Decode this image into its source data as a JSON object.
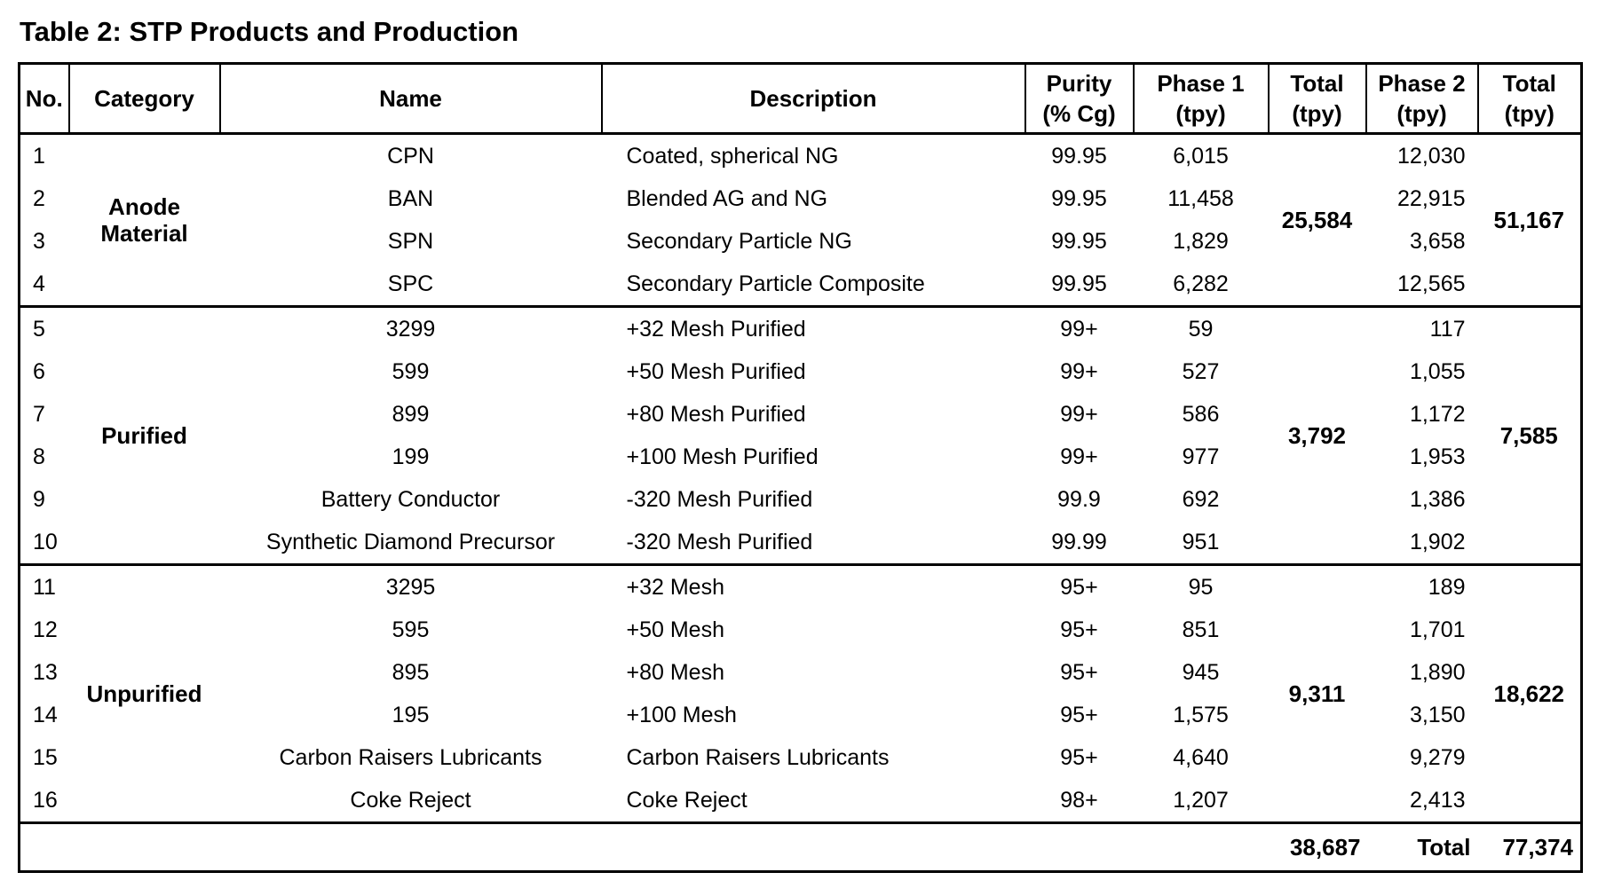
{
  "title": "Table 2: STP Products and Production",
  "columns": [
    {
      "label": "No.",
      "sub": ""
    },
    {
      "label": "Category",
      "sub": ""
    },
    {
      "label": "Name",
      "sub": ""
    },
    {
      "label": "Description",
      "sub": ""
    },
    {
      "label": "Purity",
      "sub": "(% Cg)"
    },
    {
      "label": "Phase 1",
      "sub": "(tpy)"
    },
    {
      "label": "Total",
      "sub": "(tpy)"
    },
    {
      "label": "Phase 2",
      "sub": "(tpy)"
    },
    {
      "label": "Total",
      "sub": "(tpy)"
    }
  ],
  "groups": [
    {
      "category": "Anode Material",
      "phase1_total": "25,584",
      "phase2_total": "51,167",
      "rows": [
        {
          "no": "1",
          "name": "CPN",
          "description": "Coated, spherical NG",
          "purity": "99.95",
          "phase1": "6,015",
          "phase2": "12,030"
        },
        {
          "no": "2",
          "name": "BAN",
          "description": "Blended AG and NG",
          "purity": "99.95",
          "phase1": "11,458",
          "phase2": "22,915"
        },
        {
          "no": "3",
          "name": "SPN",
          "description": "Secondary Particle NG",
          "purity": "99.95",
          "phase1": "1,829",
          "phase2": "3,658"
        },
        {
          "no": "4",
          "name": "SPC",
          "description": "Secondary Particle Composite",
          "purity": "99.95",
          "phase1": "6,282",
          "phase2": "12,565"
        }
      ]
    },
    {
      "category": "Purified",
      "phase1_total": "3,792",
      "phase2_total": "7,585",
      "rows": [
        {
          "no": "5",
          "name": "3299",
          "description": "+32 Mesh Purified",
          "purity": "99+",
          "phase1": "59",
          "phase2": "117"
        },
        {
          "no": "6",
          "name": "599",
          "description": "+50 Mesh Purified",
          "purity": "99+",
          "phase1": "527",
          "phase2": "1,055"
        },
        {
          "no": "7",
          "name": "899",
          "description": "+80 Mesh Purified",
          "purity": "99+",
          "phase1": "586",
          "phase2": "1,172"
        },
        {
          "no": "8",
          "name": "199",
          "description": "+100 Mesh Purified",
          "purity": "99+",
          "phase1": "977",
          "phase2": "1,953"
        },
        {
          "no": "9",
          "name": "Battery Conductor",
          "description": "-320 Mesh Purified",
          "purity": "99.9",
          "phase1": "692",
          "phase2": "1,386"
        },
        {
          "no": "10",
          "name": "Synthetic Diamond Precursor",
          "description": "-320 Mesh Purified",
          "purity": "99.99",
          "phase1": "951",
          "phase2": "1,902"
        }
      ]
    },
    {
      "category": "Unpurified",
      "phase1_total": "9,311",
      "phase2_total": "18,622",
      "rows": [
        {
          "no": "11",
          "name": "3295",
          "description": "+32 Mesh",
          "purity": "95+",
          "phase1": "95",
          "phase2": "189"
        },
        {
          "no": "12",
          "name": "595",
          "description": "+50 Mesh",
          "purity": "95+",
          "phase1": "851",
          "phase2": "1,701"
        },
        {
          "no": "13",
          "name": "895",
          "description": "+80 Mesh",
          "purity": "95+",
          "phase1": "945",
          "phase2": "1,890"
        },
        {
          "no": "14",
          "name": "195",
          "description": "+100 Mesh",
          "purity": "95+",
          "phase1": "1,575",
          "phase2": "3,150"
        },
        {
          "no": "15",
          "name": "Carbon Raisers Lubricants",
          "description": "Carbon Raisers Lubricants",
          "purity": "95+",
          "phase1": "4,640",
          "phase2": "9,279"
        },
        {
          "no": "16",
          "name": "Coke Reject",
          "description": "Coke Reject",
          "purity": "98+",
          "phase1": "1,207",
          "phase2": "2,413"
        }
      ]
    }
  ],
  "footer": {
    "phase1_grand_total": "38,687",
    "total_label": "Total",
    "phase2_grand_total": "77,374"
  }
}
